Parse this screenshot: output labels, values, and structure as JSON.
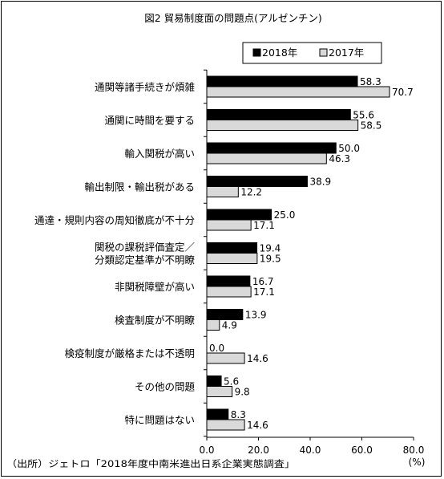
{
  "chart_data": {
    "type": "bar",
    "orientation": "horizontal",
    "title": "図2 貿易制度面の問題点(アルゼンチン)",
    "categories": [
      [
        "通関等諸手続きが煩雑"
      ],
      [
        "通関に時間を要する"
      ],
      [
        "輸入関税が高い"
      ],
      [
        "輸出制限・輸出税がある"
      ],
      [
        "通達・規則内容の周知徹底が不十分"
      ],
      [
        "関税の課税評価査定／",
        "分類認定基準が不明瞭"
      ],
      [
        "非関税障壁が高い"
      ],
      [
        "検査制度が不明瞭"
      ],
      [
        "検疫制度が厳格または不透明"
      ],
      [
        "その他の問題"
      ],
      [
        "特に問題はない"
      ]
    ],
    "series": [
      {
        "name": "2018年",
        "color": "#000000",
        "values": [
          58.3,
          55.6,
          50.0,
          38.9,
          25.0,
          19.4,
          16.7,
          13.9,
          0.0,
          5.6,
          8.3
        ],
        "labels": [
          "58.3",
          "55.6",
          "50.0",
          "38.9",
          "25.0",
          "19.4",
          "16.7",
          "13.9",
          "0.0",
          "5.6",
          "8.3"
        ]
      },
      {
        "name": "2017年",
        "color": "#d9d9d9",
        "values": [
          70.7,
          58.5,
          46.3,
          12.2,
          17.1,
          19.5,
          17.1,
          4.9,
          14.6,
          9.8,
          14.6
        ],
        "labels": [
          "70.7",
          "58.5",
          "46.3",
          "12.2",
          "17.1",
          "19.5",
          "17.1",
          "4.9",
          "14.6",
          "9.8",
          "14.6"
        ]
      }
    ],
    "xlim": [
      0,
      80
    ],
    "xticks": [
      "0.0",
      "20.0",
      "40.0",
      "60.0",
      "80.0"
    ],
    "xunit": "(%)",
    "legend": "top-right",
    "grid": false,
    "source": "（出所）ジェトロ「2018年度中南米進出日系企業実態調査」"
  }
}
